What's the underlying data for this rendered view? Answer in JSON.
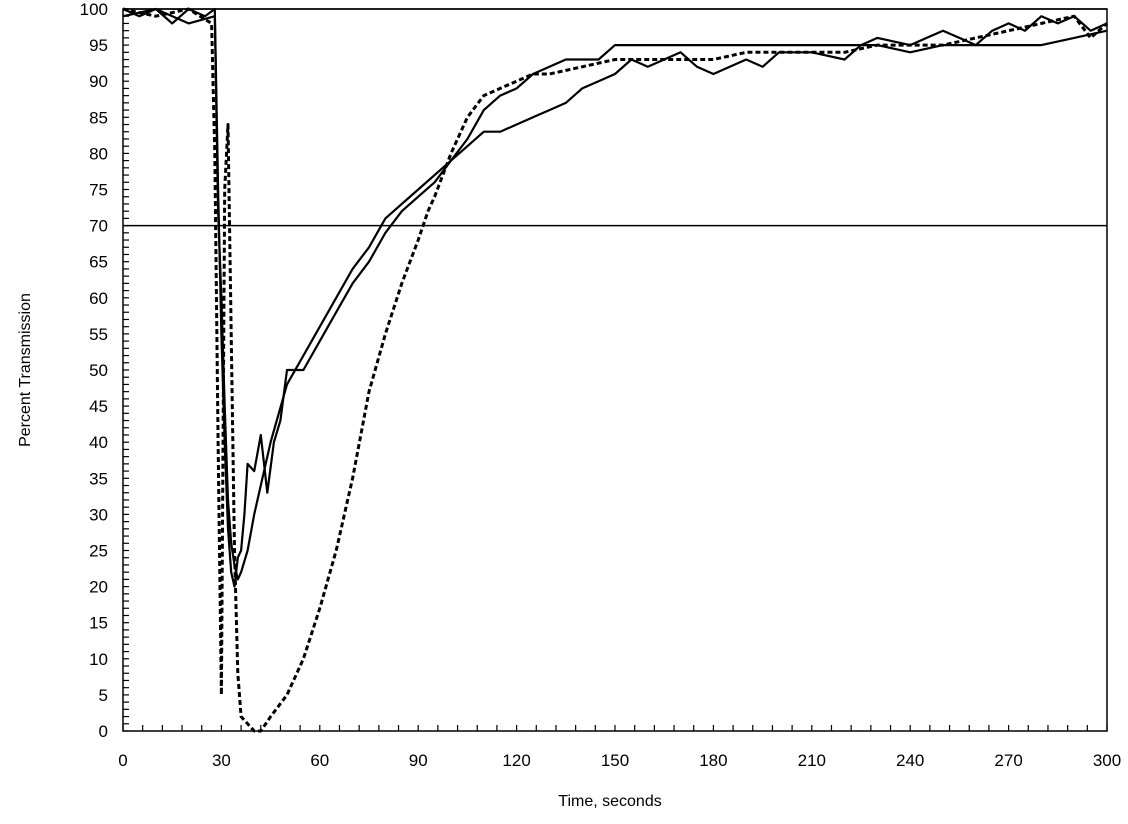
{
  "chart_data": {
    "type": "line",
    "title": "",
    "xlabel": "Time, seconds",
    "ylabel": "Percent Transmission",
    "xlim": [
      0,
      300
    ],
    "ylim": [
      0,
      100
    ],
    "xticks": [
      0,
      30,
      60,
      90,
      120,
      150,
      180,
      210,
      240,
      270,
      300
    ],
    "yticks": [
      0,
      5,
      10,
      15,
      20,
      25,
      30,
      35,
      40,
      45,
      50,
      55,
      60,
      65,
      70,
      75,
      80,
      85,
      90,
      95,
      100
    ],
    "grid": false,
    "legend": "none",
    "reference_lines": [
      {
        "axis": "y",
        "value": 100
      },
      {
        "axis": "y",
        "value": 70
      }
    ],
    "series": [
      {
        "style": "solid",
        "x": [
          0,
          5,
          10,
          15,
          20,
          25,
          28,
          29,
          30,
          31,
          32,
          33,
          34,
          35,
          36,
          37,
          38,
          40,
          42,
          44,
          46,
          48,
          50,
          55,
          60,
          65,
          70,
          75,
          80,
          85,
          90,
          95,
          100,
          105,
          110,
          115,
          120,
          125,
          130,
          135,
          140,
          145,
          150,
          155,
          160,
          165,
          170,
          175,
          180,
          185,
          190,
          195,
          200,
          210,
          220,
          225,
          230,
          240,
          245,
          250,
          255,
          260,
          265,
          270,
          275,
          280,
          285,
          290,
          295,
          300
        ],
        "y": [
          100,
          99,
          100,
          98,
          100,
          99,
          100,
          75,
          55,
          40,
          28,
          22,
          20,
          24,
          25,
          30,
          37,
          36,
          41,
          33,
          40,
          43,
          50,
          50,
          54,
          58,
          62,
          65,
          69,
          72,
          74,
          76,
          79,
          81,
          83,
          83,
          84,
          85,
          86,
          87,
          89,
          90,
          91,
          93,
          92,
          93,
          94,
          92,
          91,
          92,
          93,
          92,
          94,
          94,
          93,
          95,
          96,
          95,
          96,
          97,
          96,
          95,
          97,
          98,
          97,
          99,
          98,
          99,
          97,
          98
        ]
      },
      {
        "style": "solid",
        "x": [
          0,
          10,
          20,
          28,
          29,
          30,
          31,
          32,
          33,
          34,
          35,
          36,
          38,
          40,
          45,
          50,
          55,
          60,
          65,
          70,
          75,
          80,
          85,
          90,
          95,
          100,
          105,
          110,
          115,
          120,
          125,
          130,
          135,
          140,
          145,
          150,
          160,
          170,
          180,
          187,
          190,
          200,
          210,
          220,
          230,
          240,
          250,
          260,
          270,
          280,
          290,
          300
        ],
        "y": [
          99,
          100,
          98,
          99,
          72,
          60,
          45,
          32,
          26,
          23,
          21,
          22,
          25,
          30,
          40,
          48,
          52,
          56,
          60,
          64,
          67,
          71,
          73,
          75,
          77,
          79,
          82,
          86,
          88,
          89,
          91,
          92,
          93,
          93,
          93,
          95,
          95,
          95,
          95,
          95,
          95,
          95,
          95,
          95,
          95,
          94,
          95,
          95,
          95,
          95,
          96,
          97
        ]
      },
      {
        "style": "dashed",
        "x": [
          0,
          10,
          20,
          27,
          28,
          29,
          30,
          31,
          32,
          33,
          34,
          35,
          36,
          38,
          40,
          42,
          45,
          50,
          55,
          60,
          65,
          70,
          75,
          80,
          85,
          90,
          93,
          95,
          100,
          105,
          110,
          115,
          120,
          125,
          130,
          140,
          150,
          160,
          170,
          180,
          190,
          200,
          210,
          220,
          230,
          240,
          250,
          260,
          270,
          280,
          290,
          295,
          300
        ],
        "y": [
          100,
          99,
          100,
          98,
          80,
          40,
          5,
          75,
          84,
          55,
          25,
          8,
          2,
          1,
          0,
          0,
          2,
          5,
          10,
          17,
          25,
          35,
          47,
          55,
          62,
          68,
          72,
          74,
          80,
          85,
          88,
          89,
          90,
          91,
          91,
          92,
          93,
          93,
          93,
          93,
          94,
          94,
          94,
          94,
          95,
          95,
          95,
          96,
          97,
          98,
          99,
          96,
          98
        ]
      }
    ]
  }
}
